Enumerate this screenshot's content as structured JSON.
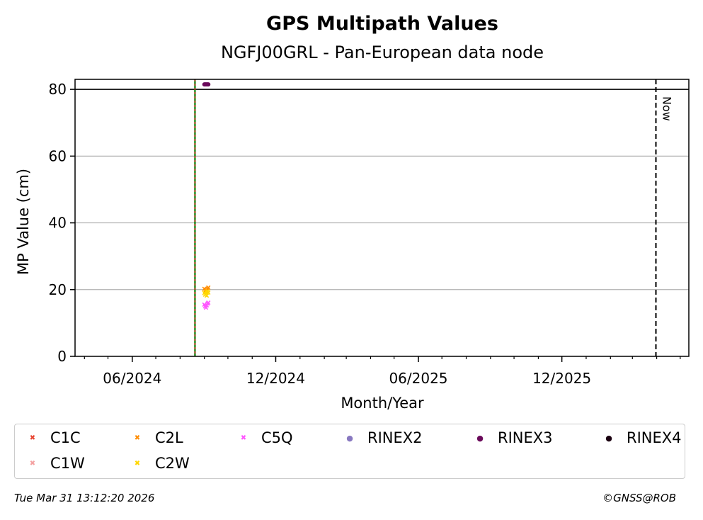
{
  "chart_data": {
    "type": "scatter",
    "title": "GPS Multipath Values",
    "subtitle": "NGFJ00GRL - Pan-European data node",
    "xlabel": "Month/Year",
    "ylabel": "MP Value (cm)",
    "xlim": [
      "2024-03-20",
      "2026-05-12"
    ],
    "ylim": [
      0,
      83
    ],
    "yticks": [
      0,
      20,
      40,
      60,
      80
    ],
    "xtick_labels": [
      "06/2024",
      "12/2024",
      "06/2025",
      "12/2025"
    ],
    "xtick_dates": [
      "2024-06-01",
      "2024-12-01",
      "2025-06-01",
      "2025-12-01"
    ],
    "grid": "horizontal",
    "legend_position": "bottom",
    "vertical_markers": [
      {
        "date": "2024-08-20",
        "style": "solid green / dashed red"
      },
      {
        "date": "2026-03-31",
        "label": "Now",
        "style": "dashed black"
      }
    ],
    "reference_line_y": 80,
    "series": [
      {
        "name": "C1C",
        "marker": "x",
        "color": "#e8432f",
        "points": []
      },
      {
        "name": "C1W",
        "marker": "x",
        "color": "#f4a2a2",
        "points": []
      },
      {
        "name": "C2L",
        "marker": "x",
        "color": "#ff8c00",
        "points": [
          {
            "x": "2024-09-01",
            "y": 20.2
          },
          {
            "x": "2024-09-02",
            "y": 19.6
          },
          {
            "x": "2024-09-03",
            "y": 20.0
          },
          {
            "x": "2024-09-04",
            "y": 19.8
          },
          {
            "x": "2024-09-05",
            "y": 20.3
          },
          {
            "x": "2024-09-06",
            "y": 20.6
          }
        ]
      },
      {
        "name": "C2W",
        "marker": "x",
        "color": "#ffd700",
        "points": [
          {
            "x": "2024-09-01",
            "y": 19.0
          },
          {
            "x": "2024-09-02",
            "y": 18.5
          },
          {
            "x": "2024-09-03",
            "y": 19.3
          },
          {
            "x": "2024-09-04",
            "y": 18.2
          },
          {
            "x": "2024-09-05",
            "y": 19.5
          },
          {
            "x": "2024-09-06",
            "y": 19.1
          }
        ]
      },
      {
        "name": "C5Q",
        "marker": "x",
        "color": "#ff55ff",
        "points": [
          {
            "x": "2024-09-01",
            "y": 15.5
          },
          {
            "x": "2024-09-02",
            "y": 15.0
          },
          {
            "x": "2024-09-03",
            "y": 14.6
          },
          {
            "x": "2024-09-04",
            "y": 15.3
          },
          {
            "x": "2024-09-05",
            "y": 15.8
          },
          {
            "x": "2024-09-06",
            "y": 16.1
          }
        ]
      },
      {
        "name": "RINEX2",
        "marker": "dot",
        "color": "#8878c0",
        "points": []
      },
      {
        "name": "RINEX3",
        "marker": "dot",
        "color": "#6a0a5a",
        "points": [
          {
            "x": "2024-09-01",
            "y": 81.5
          },
          {
            "x": "2024-09-02",
            "y": 81.5
          },
          {
            "x": "2024-09-03",
            "y": 81.5
          },
          {
            "x": "2024-09-04",
            "y": 81.5
          },
          {
            "x": "2024-09-05",
            "y": 81.5
          },
          {
            "x": "2024-09-06",
            "y": 81.5
          }
        ]
      },
      {
        "name": "RINEX4",
        "marker": "dot",
        "color": "#1a0010",
        "points": []
      }
    ]
  },
  "footer": {
    "timestamp": "Tue Mar 31 13:12:20 2026",
    "credit": "©GNSS@ROB"
  }
}
